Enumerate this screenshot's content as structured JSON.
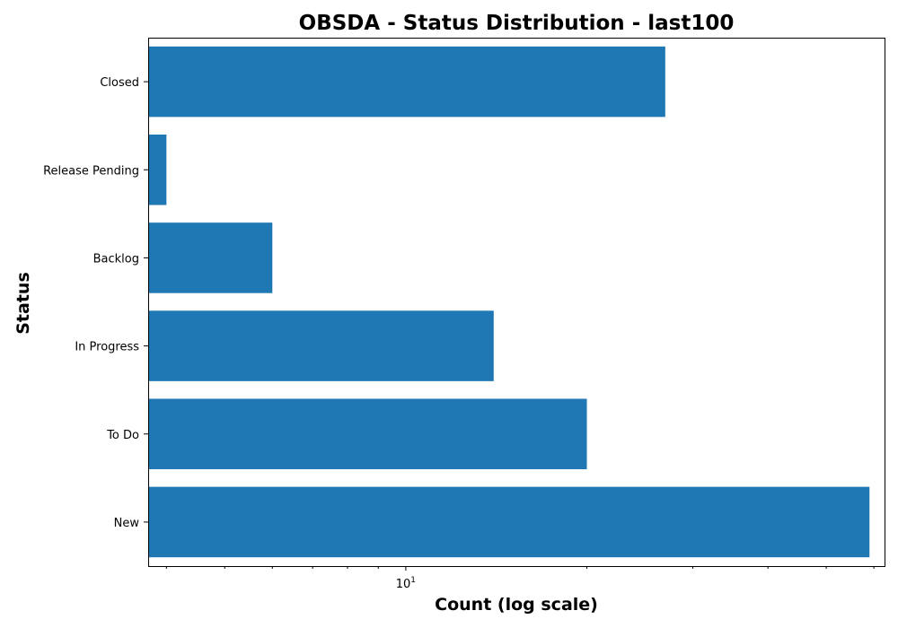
{
  "chart_data": {
    "type": "bar",
    "orientation": "horizontal",
    "title": "OBSDA - Status Distribution - last100",
    "xlabel": "Count (log scale)",
    "ylabel": "Status",
    "x_scale": "log",
    "x_major_tick_label": {
      "base": "10",
      "exponent": "1"
    },
    "categories": [
      "Closed",
      "Release Pending",
      "Backlog",
      "In Progress",
      "To Do",
      "New"
    ],
    "values": [
      27,
      4,
      6,
      14,
      20,
      59
    ],
    "xlim": [
      3.73,
      62.5
    ],
    "bar_color": "#1f77b4",
    "grid": false,
    "legend": "none"
  }
}
